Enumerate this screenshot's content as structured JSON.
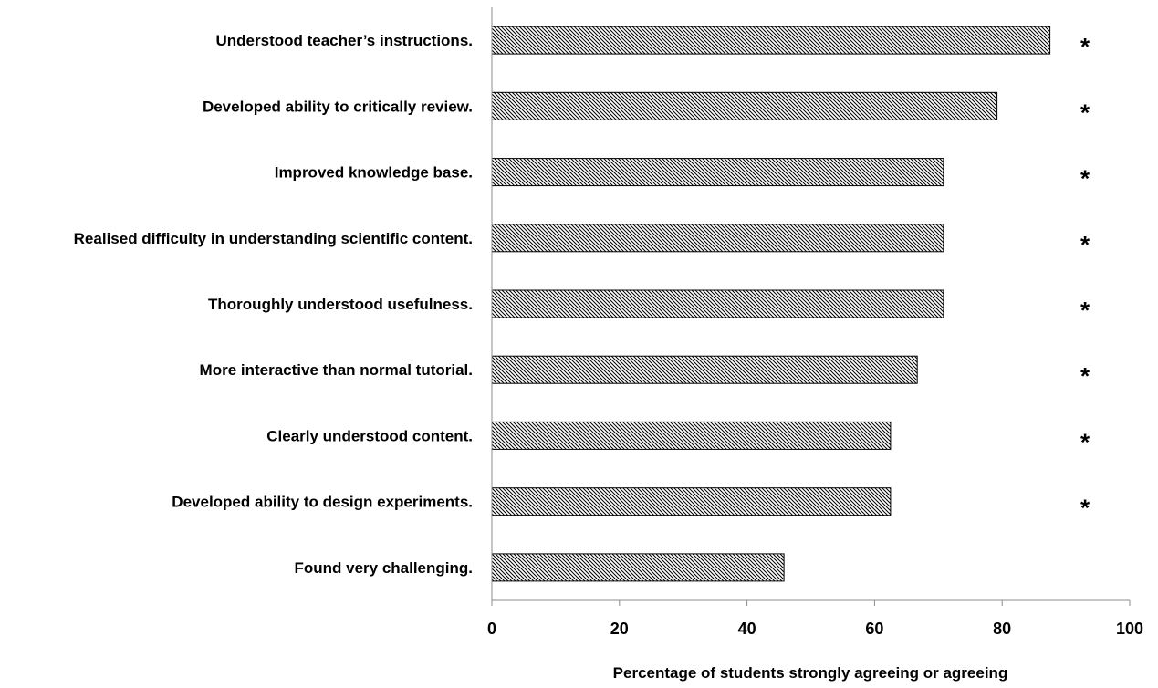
{
  "chart_data": {
    "type": "bar",
    "orientation": "horizontal",
    "categories": [
      "Understood teacher’s instructions.",
      "Developed ability to critically review.",
      "Improved knowledge base.",
      "Realised difficulty in understanding scientific content.",
      "Thoroughly understood usefulness.",
      "More interactive than normal tutorial.",
      "Clearly understood content.",
      "Developed ability to design experiments.",
      "Found very challenging."
    ],
    "values": [
      87.5,
      79.2,
      70.8,
      70.8,
      70.8,
      66.7,
      62.5,
      62.5,
      45.8
    ],
    "annotations": [
      "*",
      "*",
      "*",
      "*",
      "*",
      "*",
      "*",
      "*",
      ""
    ],
    "title": "",
    "xlabel": "Percentage of students strongly agreeing or agreeing",
    "ylabel": "",
    "xlim": [
      0,
      100
    ],
    "xticks": [
      "0",
      "20",
      "40",
      "60",
      "80",
      "100"
    ],
    "grid": false,
    "legend": "none",
    "bar_fill": "diagonal-hatch",
    "colors": {
      "bar_stroke": "#000000",
      "hatch": "#000000",
      "axis": "#8c8c8c",
      "text": "#000000"
    }
  }
}
